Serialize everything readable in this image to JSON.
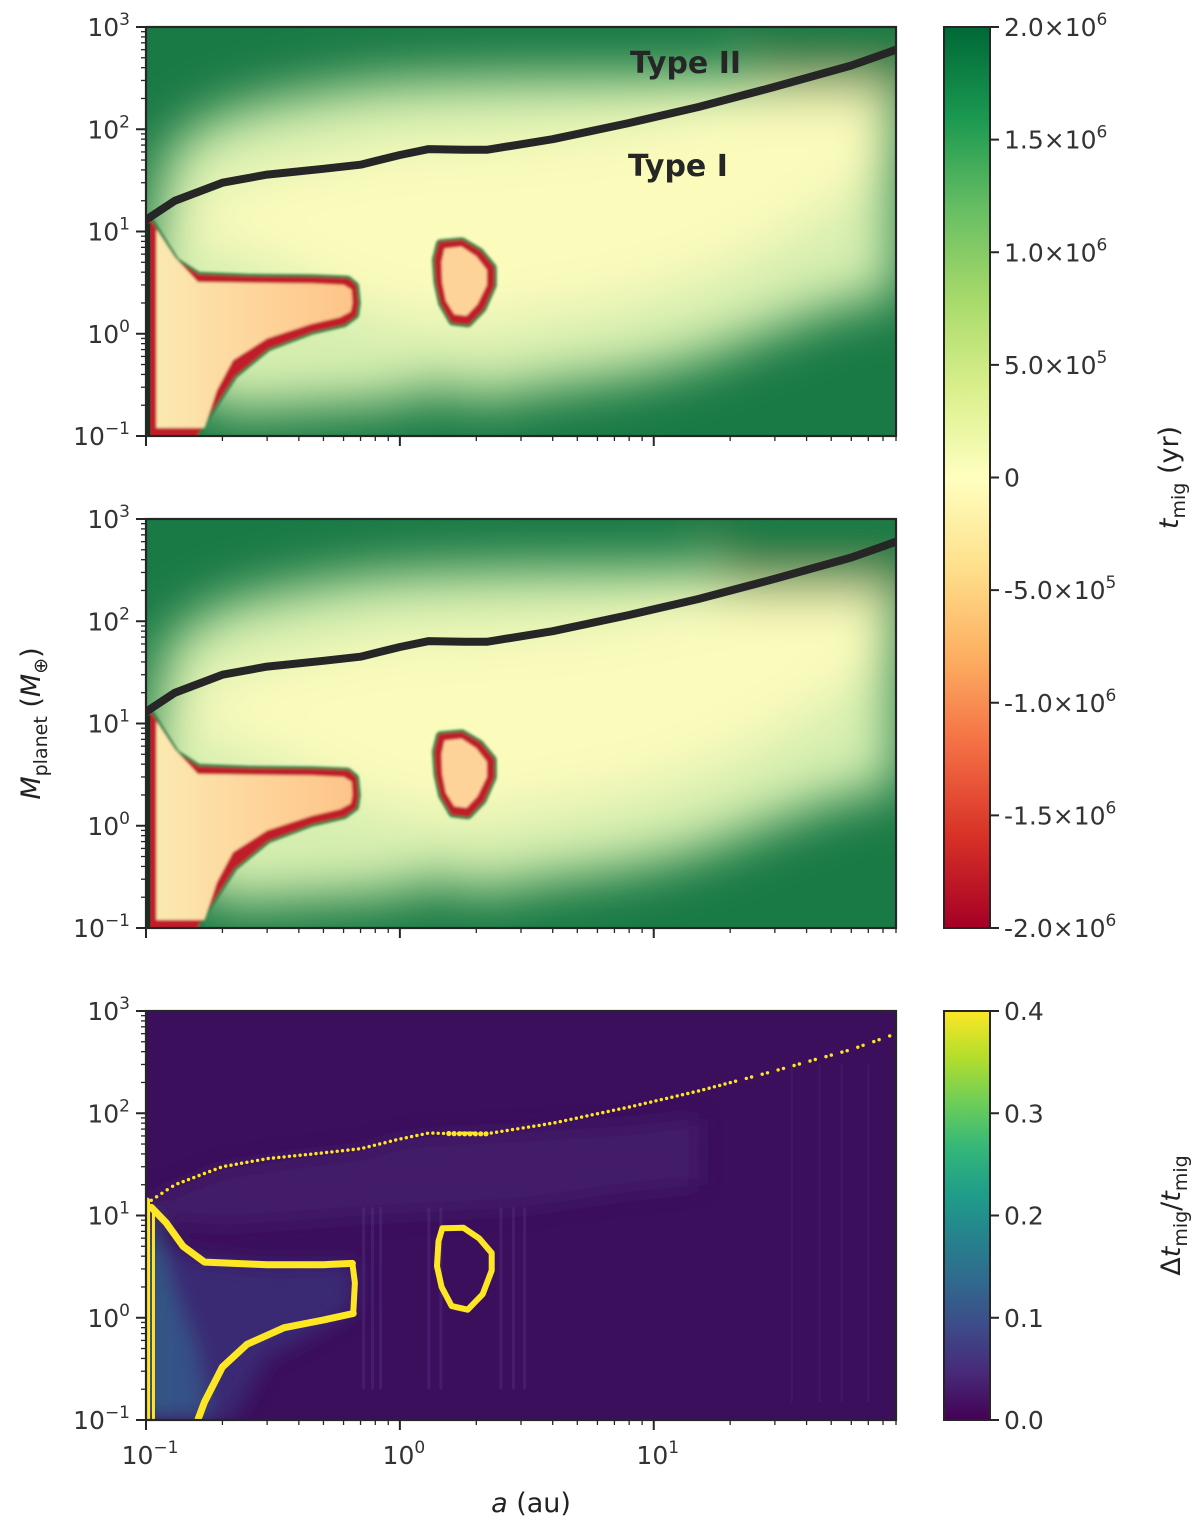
{
  "chart_data": [
    {
      "type": "heatmap",
      "panel": "top",
      "xscale": "log",
      "yscale": "log",
      "xlim": [
        0.1,
        90
      ],
      "ylim": [
        0.1,
        1000
      ],
      "y_tick_values": [
        0.1,
        1,
        10,
        100,
        1000
      ],
      "y_tick_labels": [
        {
          "base": "10",
          "exp": "−1"
        },
        {
          "base": "10",
          "exp": "0"
        },
        {
          "base": "10",
          "exp": "1"
        },
        {
          "base": "10",
          "exp": "2"
        },
        {
          "base": "10",
          "exp": "3"
        }
      ],
      "colormap": "RdYlGn",
      "clim": [
        -2000000,
        2000000
      ],
      "colors": {
        "outer_green": "#1a7a45",
        "pale_yellow": "#fbfbbb",
        "pale_green": "#d6efb0",
        "red_edge": "#c01a2c",
        "orange_core": "#fed39a"
      },
      "transition_curve": {
        "color": "#262626",
        "x": [
          0.1,
          0.13,
          0.2,
          0.3,
          0.5,
          0.7,
          1.0,
          1.3,
          1.8,
          2.2,
          4,
          8,
          15,
          30,
          60,
          90
        ],
        "y": [
          13,
          20,
          30,
          36,
          41,
          45,
          56,
          64,
          63,
          63,
          80,
          115,
          165,
          260,
          420,
          600
        ]
      },
      "annotations": [
        {
          "text": "Type II"
        },
        {
          "text": "Type I"
        }
      ]
    },
    {
      "type": "heatmap",
      "panel": "middle",
      "xscale": "log",
      "yscale": "log",
      "xlim": [
        0.1,
        90
      ],
      "ylim": [
        0.1,
        1000
      ],
      "y_tick_values": [
        0.1,
        1,
        10,
        100,
        1000
      ],
      "y_tick_labels": [
        {
          "base": "10",
          "exp": "−1"
        },
        {
          "base": "10",
          "exp": "0"
        },
        {
          "base": "10",
          "exp": "1"
        },
        {
          "base": "10",
          "exp": "2"
        },
        {
          "base": "10",
          "exp": "3"
        }
      ],
      "ylabel": {
        "main": "M",
        "sub": "planet",
        "unit_open": " (",
        "unit_main": "M",
        "unit_sub": "⊕",
        "unit_close": ")"
      },
      "colormap": "RdYlGn",
      "clim": [
        -2000000,
        2000000
      ],
      "transition_curve": {
        "color": "#262626",
        "x": [
          0.1,
          0.13,
          0.2,
          0.3,
          0.5,
          0.7,
          1.0,
          1.3,
          1.8,
          2.2,
          4,
          8,
          15,
          30,
          60,
          90
        ],
        "y": [
          13,
          20,
          30,
          36,
          41,
          45,
          56,
          64,
          63,
          63,
          80,
          115,
          165,
          260,
          420,
          600
        ]
      }
    },
    {
      "type": "heatmap",
      "panel": "bottom",
      "xscale": "log",
      "yscale": "log",
      "xlim": [
        0.1,
        90
      ],
      "ylim": [
        0.1,
        1000
      ],
      "y_tick_values": [
        0.1,
        1,
        10,
        100,
        1000
      ],
      "y_tick_labels": [
        {
          "base": "10",
          "exp": "−1"
        },
        {
          "base": "10",
          "exp": "0"
        },
        {
          "base": "10",
          "exp": "1"
        },
        {
          "base": "10",
          "exp": "2"
        },
        {
          "base": "10",
          "exp": "3"
        }
      ],
      "x_tick_values": [
        0.1,
        1,
        10
      ],
      "x_tick_labels": [
        {
          "base": "10",
          "exp": "−1"
        },
        {
          "base": "10",
          "exp": "0"
        },
        {
          "base": "10",
          "exp": "1"
        }
      ],
      "xlabel": {
        "main": "a",
        "rest": " (au)"
      },
      "colormap": "viridis",
      "clim": [
        0.0,
        0.4
      ],
      "colors": {
        "background": "#3b0f5c",
        "highlight": "#fde725"
      }
    }
  ],
  "colorbars": [
    {
      "for_panels": [
        "top",
        "middle"
      ],
      "colormap": "RdYlGn",
      "stops": [
        "#a50026",
        "#d73027",
        "#f46d43",
        "#fdae61",
        "#fee08b",
        "#ffffbf",
        "#d9ef8b",
        "#a6d96a",
        "#66bd63",
        "#1a9850",
        "#006837"
      ],
      "tick_values": [
        2000000,
        1500000,
        1000000,
        500000,
        0,
        -500000,
        -1000000,
        -1500000,
        -2000000
      ],
      "tick_labels": [
        {
          "mant": "2.0×10",
          "exp": "6"
        },
        {
          "mant": "1.5×10",
          "exp": "6"
        },
        {
          "mant": "1.0×10",
          "exp": "6"
        },
        {
          "mant": "5.0×10",
          "exp": "5"
        },
        {
          "mant": "0",
          "exp": ""
        },
        {
          "mant": "-5.0×10",
          "exp": "5"
        },
        {
          "mant": "-1.0×10",
          "exp": "6"
        },
        {
          "mant": "-1.5×10",
          "exp": "6"
        },
        {
          "mant": "-2.0×10",
          "exp": "6"
        }
      ],
      "label": {
        "main": "t",
        "sub": "mig",
        "rest": " (yr)"
      }
    },
    {
      "for_panels": [
        "bottom"
      ],
      "colormap": "viridis",
      "stops": [
        "#440154",
        "#482878",
        "#3e4989",
        "#31688e",
        "#26828e",
        "#1f9e89",
        "#35b779",
        "#6ece58",
        "#b5de2b",
        "#fde725"
      ],
      "tick_values": [
        0.4,
        0.3,
        0.2,
        0.1,
        0.0
      ],
      "tick_labels": [
        {
          "mant": "0.4",
          "exp": ""
        },
        {
          "mant": "0.3",
          "exp": ""
        },
        {
          "mant": "0.2",
          "exp": ""
        },
        {
          "mant": "0.1",
          "exp": ""
        },
        {
          "mant": "0.0",
          "exp": ""
        }
      ],
      "label": {
        "pre": "Δ",
        "t1": "t",
        "s1": "mig",
        "slash": "/",
        "t2": "t",
        "s2": "mig"
      }
    }
  ]
}
